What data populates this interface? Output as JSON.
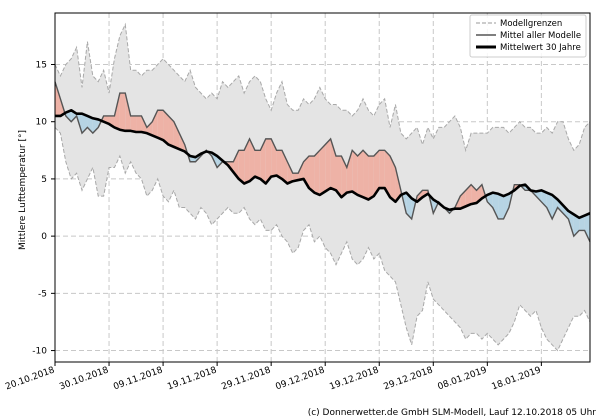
{
  "chart_data": {
    "type": "line",
    "ylabel": "Mittlere Lufttemperatur [°]",
    "ylim": [
      -11,
      19.5
    ],
    "yticks": [
      -10,
      -5,
      0,
      5,
      10,
      15
    ],
    "xticks": [
      {
        "label": "20.10.2018",
        "day": 0
      },
      {
        "label": "30.10.2018",
        "day": 10
      },
      {
        "label": "09.11.2018",
        "day": 20
      },
      {
        "label": "19.11.2018",
        "day": 30
      },
      {
        "label": "29.11.2018",
        "day": 40
      },
      {
        "label": "09.12.2018",
        "day": 50
      },
      {
        "label": "19.12.2018",
        "day": 60
      },
      {
        "label": "29.12.2018",
        "day": 70
      },
      {
        "label": "08.01.2019",
        "day": 80
      },
      {
        "label": "18.01.2019",
        "day": 90
      }
    ],
    "xlim": [
      0,
      99
    ],
    "x_step_days": 1,
    "legend": {
      "position": "top-right",
      "entries": [
        "Modellgrenzen",
        "Mittel aller Modelle",
        "Mittelwert 30 Jahre"
      ]
    },
    "footer": "(c) Donnerwetter.de GmbH SLM-Modell, Lauf 12.10.2018 05 Uhr",
    "series": [
      {
        "name": "Mittel aller Modelle",
        "values": [
          13.5,
          12.0,
          10.5,
          10.0,
          10.5,
          9.0,
          9.5,
          9.0,
          9.5,
          10.5,
          10.5,
          10.5,
          12.5,
          12.5,
          10.5,
          10.5,
          10.5,
          9.5,
          10.0,
          11.0,
          11.0,
          10.5,
          10.0,
          9.0,
          8.0,
          6.5,
          6.5,
          7.0,
          7.5,
          7.0,
          6.0,
          6.5,
          6.5,
          6.5,
          7.5,
          7.5,
          8.5,
          7.5,
          7.5,
          8.5,
          8.5,
          7.5,
          7.5,
          6.5,
          5.5,
          5.5,
          6.5,
          7.0,
          7.0,
          7.5,
          8.0,
          8.5,
          7.0,
          7.0,
          6.0,
          7.5,
          7.0,
          7.5,
          7.0,
          7.0,
          7.5,
          7.5,
          7.0,
          6.0,
          4.0,
          2.0,
          1.5,
          3.5,
          4.0,
          4.0,
          2.0,
          3.0,
          2.5,
          2.0,
          2.5,
          3.5,
          4.0,
          4.5,
          4.0,
          4.5,
          3.0,
          2.5,
          1.5,
          1.5,
          2.5,
          4.5,
          4.5,
          4.0,
          4.0,
          3.5,
          3.0,
          2.5,
          1.5,
          2.5,
          2.0,
          1.5,
          0.0,
          0.5,
          0.5,
          -0.5
        ]
      },
      {
        "name": "Modellgrenzen (max)",
        "values": [
          15.0,
          14.0,
          15.0,
          15.5,
          16.5,
          13.0,
          17.0,
          14.0,
          13.5,
          14.5,
          12.5,
          15.5,
          17.5,
          18.5,
          14.5,
          14.5,
          14.0,
          14.5,
          14.5,
          15.0,
          15.5,
          15.0,
          14.5,
          14.0,
          13.5,
          14.5,
          13.0,
          12.5,
          12.0,
          12.5,
          12.0,
          13.5,
          13.0,
          13.5,
          14.0,
          12.5,
          13.5,
          14.0,
          13.5,
          12.0,
          11.0,
          12.5,
          13.5,
          11.5,
          11.0,
          11.0,
          12.0,
          11.5,
          12.0,
          13.0,
          12.0,
          11.5,
          11.5,
          11.0,
          11.0,
          10.5,
          11.0,
          12.0,
          11.0,
          10.5,
          11.5,
          12.0,
          9.5,
          11.5,
          9.0,
          8.5,
          9.0,
          9.5,
          8.0,
          9.5,
          8.5,
          9.5,
          9.5,
          10.0,
          10.5,
          9.5,
          7.5,
          9.0,
          9.0,
          9.0,
          9.0,
          9.5,
          9.5,
          9.5,
          9.0,
          9.5,
          10.0,
          9.5,
          9.5,
          9.0,
          9.0,
          9.5,
          9.0,
          10.0,
          10.0,
          8.5,
          7.5,
          8.0,
          9.5,
          10.0
        ]
      },
      {
        "name": "Modellgrenzen (min)",
        "values": [
          9.5,
          9.0,
          6.5,
          5.0,
          5.5,
          4.0,
          5.0,
          6.0,
          3.5,
          3.5,
          6.0,
          6.0,
          7.0,
          5.5,
          6.5,
          5.5,
          5.0,
          3.5,
          4.0,
          5.0,
          3.5,
          3.0,
          4.0,
          2.5,
          2.5,
          2.0,
          1.5,
          2.5,
          2.0,
          1.0,
          1.5,
          2.0,
          2.5,
          2.0,
          2.0,
          2.5,
          1.5,
          1.0,
          1.5,
          0.5,
          0.5,
          1.0,
          0.0,
          -0.5,
          -1.5,
          -1.0,
          0.5,
          1.0,
          -0.5,
          0.0,
          -1.0,
          -1.5,
          -2.5,
          -1.5,
          -0.5,
          -2.0,
          -2.5,
          -2.0,
          -1.0,
          -2.0,
          -1.5,
          -3.0,
          -3.5,
          -4.0,
          -6.0,
          -8.0,
          -9.5,
          -7.0,
          -6.5,
          -4.0,
          -5.5,
          -6.0,
          -6.5,
          -7.0,
          -7.5,
          -8.0,
          -9.0,
          -8.5,
          -8.5,
          -9.0,
          -8.5,
          -9.0,
          -9.5,
          -9.0,
          -8.5,
          -7.5,
          -6.0,
          -6.5,
          -7.0,
          -6.5,
          -8.0,
          -9.0,
          -9.5,
          -10.0,
          -9.0,
          -8.0,
          -7.0,
          -7.0,
          -6.5,
          -7.5
        ]
      },
      {
        "name": "Mittelwert 30 Jahre",
        "values": [
          10.5,
          10.5,
          10.8,
          11.0,
          10.7,
          10.7,
          10.5,
          10.3,
          10.2,
          10.0,
          9.8,
          9.5,
          9.3,
          9.2,
          9.2,
          9.1,
          9.1,
          9.0,
          8.8,
          8.6,
          8.4,
          8.0,
          7.8,
          7.6,
          7.4,
          7.0,
          6.9,
          7.2,
          7.4,
          7.3,
          7.0,
          6.6,
          6.2,
          5.6,
          5.0,
          4.6,
          4.8,
          5.2,
          5.0,
          4.6,
          5.2,
          5.3,
          5.0,
          4.6,
          4.8,
          4.9,
          5.0,
          4.2,
          3.8,
          3.6,
          3.9,
          4.2,
          4.0,
          3.4,
          3.8,
          3.9,
          3.6,
          3.4,
          3.2,
          3.5,
          4.2,
          4.2,
          3.4,
          3.0,
          3.6,
          3.8,
          3.3,
          3.0,
          3.4,
          3.7,
          3.2,
          2.9,
          2.5,
          2.3,
          2.4,
          2.4,
          2.6,
          2.8,
          2.9,
          3.3,
          3.6,
          3.8,
          3.7,
          3.5,
          3.7,
          4.0,
          4.4,
          4.5,
          4.0,
          3.9,
          4.0,
          3.8,
          3.6,
          3.2,
          2.7,
          2.2,
          1.9,
          1.6,
          1.8,
          2.0
        ]
      }
    ]
  }
}
